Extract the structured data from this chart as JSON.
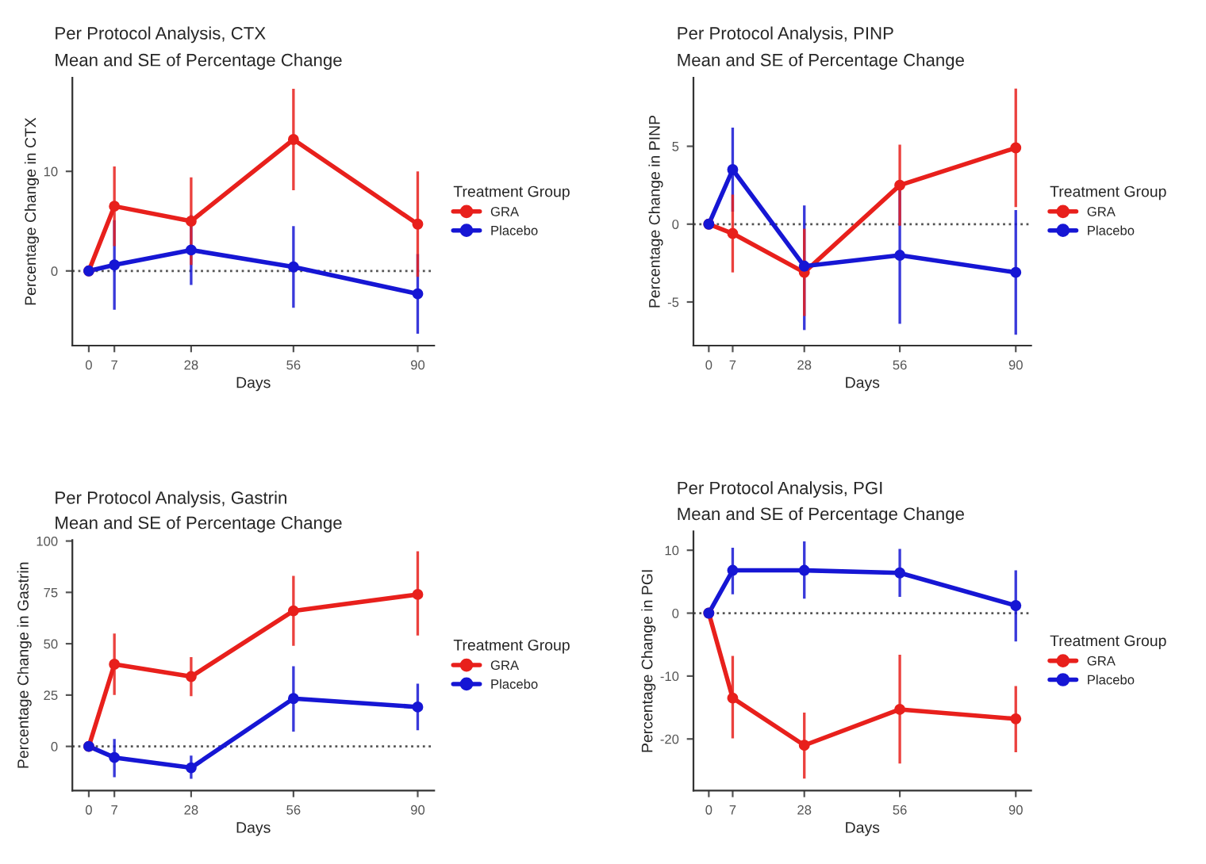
{
  "chart_data": [
    {
      "type": "line",
      "title": "Per Protocol Analysis, CTX",
      "subtitle": "Mean and SE of Percentage Change",
      "xlabel": "Days",
      "ylabel": "Percentage Change in CTX",
      "legend_title": "Treatment Group",
      "legend": "right",
      "marker": "circle",
      "line_style": "solid",
      "grid": false,
      "x": [
        0,
        7,
        28,
        56,
        90
      ],
      "xlim": [
        -4.5,
        94.5
      ],
      "xticks": [
        0,
        7,
        28,
        56,
        90
      ],
      "ylim": [
        -7.5,
        19.4
      ],
      "yticks": [
        0,
        10
      ],
      "ref_lines": [
        {
          "axis": "y",
          "value": 0,
          "color": "#555555",
          "line_style": "dotted"
        }
      ],
      "series": [
        {
          "name": "GRA",
          "color": "#e8201c",
          "values": [
            0,
            6.5,
            5.0,
            13.2,
            4.7
          ],
          "errors": [
            null,
            [
              2.5,
              10.5
            ],
            [
              0.6,
              9.4
            ],
            [
              8.1,
              18.3
            ],
            [
              -0.6,
              10.0
            ]
          ]
        },
        {
          "name": "Placebo",
          "color": "#1616d4",
          "values": [
            0,
            0.6,
            2.1,
            0.4,
            -2.3
          ],
          "errors": [
            null,
            [
              -3.9,
              5.1
            ],
            [
              -1.4,
              5.6
            ],
            [
              -3.7,
              4.5
            ],
            [
              -6.3,
              1.7
            ]
          ]
        }
      ]
    },
    {
      "type": "line",
      "title": "Per Protocol Analysis, PINP",
      "subtitle": "Mean and SE of Percentage Change",
      "xlabel": "Days",
      "ylabel": "Percentage Change in PINP",
      "legend_title": "Treatment Group",
      "legend": "right",
      "marker": "circle",
      "line_style": "solid",
      "grid": false,
      "x": [
        0,
        7,
        28,
        56,
        90
      ],
      "xlim": [
        -4.5,
        94.5
      ],
      "xticks": [
        0,
        7,
        28,
        56,
        90
      ],
      "ylim": [
        -7.8,
        9.4
      ],
      "yticks": [
        -5,
        0,
        5
      ],
      "ref_lines": [
        {
          "axis": "y",
          "value": 0,
          "color": "#555555",
          "line_style": "dotted"
        }
      ],
      "series": [
        {
          "name": "GRA",
          "color": "#e8201c",
          "values": [
            0,
            -0.6,
            -3.1,
            2.5,
            4.9
          ],
          "errors": [
            null,
            [
              -3.1,
              1.9
            ],
            [
              -5.9,
              -0.3
            ],
            [
              -0.1,
              5.1
            ],
            [
              1.1,
              8.7
            ]
          ]
        },
        {
          "name": "Placebo",
          "color": "#1616d4",
          "values": [
            0,
            3.5,
            -2.7,
            -2.0,
            -3.1
          ],
          "errors": [
            null,
            [
              0.8,
              6.2
            ],
            [
              -6.8,
              1.2
            ],
            [
              -6.4,
              2.4
            ],
            [
              -7.1,
              0.9
            ]
          ]
        }
      ]
    },
    {
      "type": "line",
      "title": "Per Protocol Analysis, Gastrin",
      "subtitle": "Mean and SE of Percentage Change",
      "xlabel": "Days",
      "ylabel": "Percentage Change in Gastrin",
      "legend_title": "Treatment Group",
      "legend": "right",
      "marker": "circle",
      "line_style": "solid",
      "grid": false,
      "x": [
        0,
        7,
        28,
        56,
        90
      ],
      "xlim": [
        -4.5,
        94.5
      ],
      "xticks": [
        0,
        7,
        28,
        56,
        90
      ],
      "ylim": [
        -21.5,
        100.5
      ],
      "yticks": [
        0,
        25,
        50,
        75,
        100
      ],
      "ref_lines": [
        {
          "axis": "y",
          "value": 0,
          "color": "#555555",
          "line_style": "dotted"
        }
      ],
      "series": [
        {
          "name": "GRA",
          "color": "#e8201c",
          "values": [
            0,
            40,
            34,
            66,
            74
          ],
          "errors": [
            null,
            [
              25,
              55
            ],
            [
              24.5,
              43.5
            ],
            [
              49,
              83
            ],
            [
              54,
              95
            ]
          ]
        },
        {
          "name": "Placebo",
          "color": "#1616d4",
          "values": [
            0,
            -5.4,
            -10.4,
            23.3,
            19.2
          ],
          "errors": [
            null,
            [
              -15,
              3.6
            ],
            [
              -15.8,
              -4.5
            ],
            [
              7.2,
              39
            ],
            [
              7.9,
              30.5
            ]
          ]
        }
      ]
    },
    {
      "type": "line",
      "title": "Per Protocol Analysis, PGI",
      "subtitle": "Mean and SE of Percentage Change",
      "xlabel": "Days",
      "ylabel": "Percentage Change in PGI",
      "legend_title": "Treatment Group",
      "legend": "right",
      "marker": "circle",
      "line_style": "solid",
      "grid": false,
      "x": [
        0,
        7,
        28,
        56,
        90
      ],
      "xlim": [
        -4.5,
        94.5
      ],
      "xticks": [
        0,
        7,
        28,
        56,
        90
      ],
      "ylim": [
        -28.2,
        13
      ],
      "yticks": [
        -20,
        -10,
        0,
        10
      ],
      "ref_lines": [
        {
          "axis": "y",
          "value": 0,
          "color": "#555555",
          "line_style": "dotted"
        }
      ],
      "series": [
        {
          "name": "GRA",
          "color": "#e8201c",
          "values": [
            0,
            -13.5,
            -21.0,
            -15.3,
            -16.8
          ],
          "errors": [
            null,
            [
              -19.9,
              -6.8
            ],
            [
              -26.3,
              -15.8
            ],
            [
              -23.9,
              -6.6
            ],
            [
              -22.1,
              -11.6
            ]
          ]
        },
        {
          "name": "Placebo",
          "color": "#1616d4",
          "values": [
            0,
            6.8,
            6.8,
            6.4,
            1.2
          ],
          "errors": [
            null,
            [
              3.0,
              10.4
            ],
            [
              2.3,
              11.4
            ],
            [
              2.6,
              10.2
            ],
            [
              -4.5,
              6.8
            ]
          ]
        }
      ]
    }
  ]
}
